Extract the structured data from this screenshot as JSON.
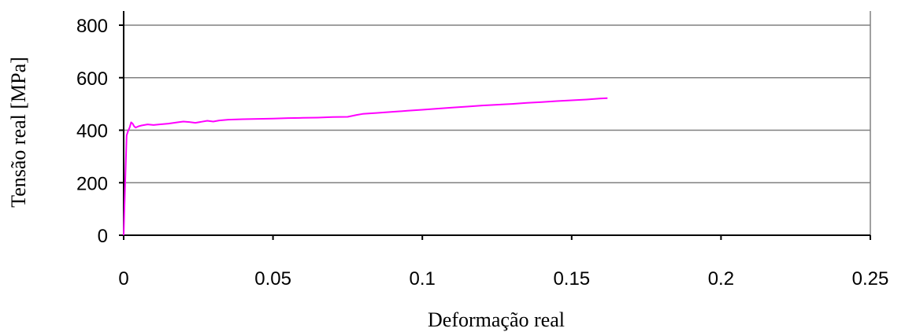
{
  "chart_data": {
    "type": "line",
    "title": "",
    "xlabel": "Deformação real",
    "ylabel": "Tensão real [MPa]",
    "xlim": [
      0,
      0.25
    ],
    "ylim": [
      0,
      800
    ],
    "x_ticks": [
      "0",
      "0.05",
      "0.1",
      "0.15",
      "0.2",
      "0.25"
    ],
    "y_ticks": [
      "0",
      "200",
      "400",
      "600",
      "800"
    ],
    "x_tick_values": [
      0,
      0.05,
      0.1,
      0.15,
      0.2,
      0.25
    ],
    "y_tick_values": [
      0,
      200,
      400,
      600,
      800
    ],
    "grid": "horizontal",
    "legend": "none",
    "series": [
      {
        "color": "#ff00ff",
        "x": [
          0,
          0.0005,
          0.001,
          0.0015,
          0.002,
          0.0025,
          0.003,
          0.0035,
          0.004,
          0.005,
          0.006,
          0.008,
          0.01,
          0.012,
          0.015,
          0.018,
          0.02,
          0.022,
          0.024,
          0.026,
          0.028,
          0.03,
          0.032,
          0.035,
          0.04,
          0.045,
          0.05,
          0.055,
          0.06,
          0.065,
          0.07,
          0.075,
          0.078,
          0.08,
          0.085,
          0.09,
          0.095,
          0.1,
          0.105,
          0.11,
          0.115,
          0.12,
          0.125,
          0.13,
          0.135,
          0.14,
          0.145,
          0.15,
          0.155,
          0.16,
          0.162
        ],
        "y": [
          0,
          200,
          380,
          398,
          410,
          430,
          425,
          415,
          410,
          415,
          418,
          422,
          420,
          422,
          425,
          430,
          433,
          431,
          428,
          432,
          436,
          433,
          437,
          440,
          442,
          443,
          444,
          446,
          447,
          448,
          450,
          451,
          458,
          462,
          466,
          470,
          474,
          478,
          482,
          486,
          490,
          494,
          497,
          500,
          504,
          507,
          511,
          514,
          517,
          521,
          522
        ]
      }
    ]
  }
}
